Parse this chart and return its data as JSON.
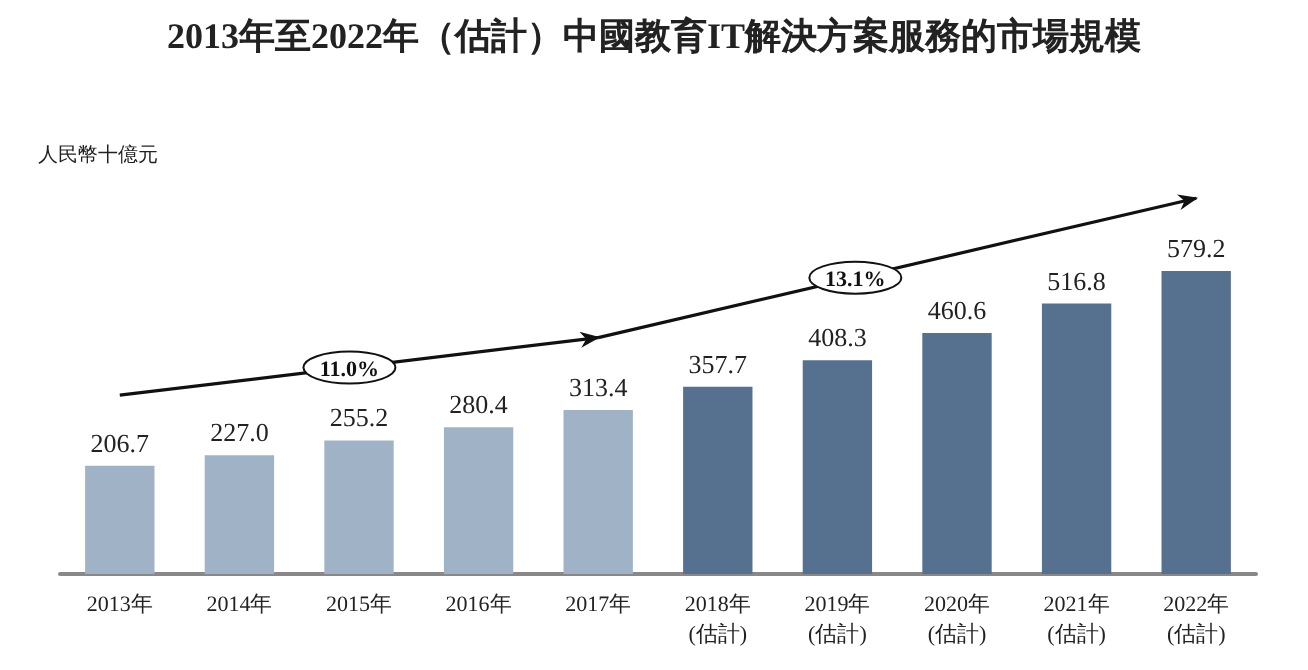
{
  "chart_data": {
    "type": "bar",
    "title": "2013年至2022年（估計）中國教育IT解決方案服務的市場規模",
    "categories": [
      "2013年",
      "2014年",
      "2015年",
      "2016年",
      "2017年",
      "2018年\n(估計)",
      "2019年\n(估計)",
      "2020年\n(估計)",
      "2021年\n(估計)",
      "2022年\n(估計)"
    ],
    "values": [
      206.7,
      227.0,
      255.2,
      280.4,
      313.4,
      357.7,
      408.3,
      460.6,
      516.8,
      579.2
    ],
    "value_labels": [
      "206.7",
      "227.0",
      "255.2",
      "280.4",
      "313.4",
      "357.7",
      "408.3",
      "460.6",
      "516.8",
      "579.2"
    ],
    "colors": [
      "#a0b3c6",
      "#a0b3c6",
      "#a0b3c6",
      "#a0b3c6",
      "#a0b3c6",
      "#56718f",
      "#56718f",
      "#56718f",
      "#56718f",
      "#56718f"
    ],
    "annotations": [
      "人民幣十億元",
      "11.0%",
      "13.1%"
    ]
  }
}
